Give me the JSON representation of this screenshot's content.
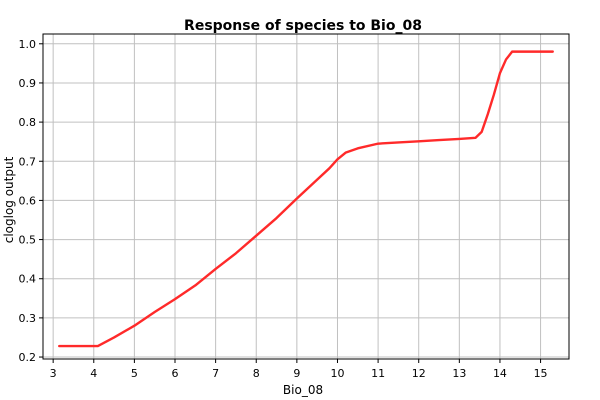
{
  "chart_data": {
    "type": "line",
    "title": "Response of species to Bio_08",
    "xlabel": "Bio_08",
    "ylabel": "cloglog output",
    "xlim": [
      2.75,
      15.7
    ],
    "ylim": [
      0.195,
      1.025
    ],
    "xticks": [
      "3",
      "4",
      "5",
      "6",
      "7",
      "8",
      "9",
      "10",
      "11",
      "12",
      "13",
      "14",
      "15"
    ],
    "yticks": [
      "0.2",
      "0.3",
      "0.4",
      "0.5",
      "0.6",
      "0.7",
      "0.8",
      "0.9",
      "1.0"
    ],
    "grid": true,
    "series": [
      {
        "color": "#ff2a2a",
        "points": [
          [
            3.15,
            0.228
          ],
          [
            4.1,
            0.228
          ],
          [
            4.5,
            0.25
          ],
          [
            5.0,
            0.28
          ],
          [
            5.5,
            0.315
          ],
          [
            6.0,
            0.348
          ],
          [
            6.5,
            0.383
          ],
          [
            7.0,
            0.425
          ],
          [
            7.5,
            0.465
          ],
          [
            8.0,
            0.51
          ],
          [
            8.5,
            0.555
          ],
          [
            9.0,
            0.605
          ],
          [
            9.5,
            0.653
          ],
          [
            9.8,
            0.682
          ],
          [
            10.0,
            0.705
          ],
          [
            10.2,
            0.722
          ],
          [
            10.5,
            0.733
          ],
          [
            11.0,
            0.745
          ],
          [
            11.5,
            0.748
          ],
          [
            12.0,
            0.751
          ],
          [
            12.5,
            0.754
          ],
          [
            13.0,
            0.757
          ],
          [
            13.4,
            0.76
          ],
          [
            13.55,
            0.775
          ],
          [
            13.7,
            0.82
          ],
          [
            13.85,
            0.87
          ],
          [
            14.0,
            0.925
          ],
          [
            14.15,
            0.96
          ],
          [
            14.3,
            0.98
          ],
          [
            15.3,
            0.98
          ]
        ]
      }
    ]
  },
  "colors": {
    "background": "#ffffff",
    "grid": "#c0c0c0",
    "frame": "#000000",
    "line": "#ff2a2a"
  }
}
